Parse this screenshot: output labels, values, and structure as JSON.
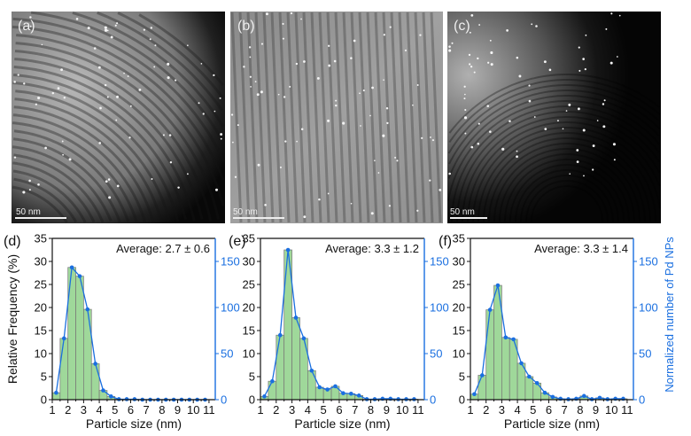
{
  "micrographs": [
    {
      "label": "(a)",
      "scale_bar": "50 nm"
    },
    {
      "label": "(b)",
      "scale_bar": "50 nm"
    },
    {
      "label": "(c)",
      "scale_bar": "50 nm"
    }
  ],
  "colors": {
    "bar": "#9fd89a",
    "bar_edge": "#777777",
    "line": "#1a6fe0"
  },
  "chart_data": [
    {
      "type": "bar",
      "panel": "(d)",
      "annotation": "Average: 2.7 ± 0.6",
      "xlabel": "Particle size (nm)",
      "ylabel": "Relative Frequency (%)",
      "y2label": "",
      "xlim": [
        1,
        11.4
      ],
      "ylim": [
        0,
        35
      ],
      "y2lim": [
        0,
        175
      ],
      "xticks": [
        "1",
        "2",
        "3",
        "4",
        "5",
        "6",
        "7",
        "8",
        "9",
        "10",
        "11"
      ],
      "yticks": [
        "0",
        "5",
        "10",
        "15",
        "20",
        "25",
        "30",
        "35"
      ],
      "y2ticks": [
        "0",
        "50",
        "100",
        "150"
      ],
      "bin_centers": [
        1.25,
        1.75,
        2.25,
        2.75,
        3.25,
        3.75,
        4.25,
        4.75,
        5.25,
        5.75,
        6.25,
        6.75,
        7.25,
        7.75,
        8.25,
        8.75,
        9.25,
        9.75,
        10.25,
        10.75
      ],
      "values": [
        1.5,
        13.3,
        28.7,
        26.8,
        19.6,
        7.8,
        2.0,
        0.7,
        0.1,
        0.1,
        0.1,
        0,
        0,
        0,
        0,
        0,
        0,
        0,
        0,
        0
      ],
      "show_ylabel": true,
      "show_y2label": false
    },
    {
      "type": "bar",
      "panel": "(e)",
      "annotation": "Average: 3.3 ± 1.2",
      "xlabel": "Particle size (nm)",
      "ylabel": "",
      "y2label": "",
      "xlim": [
        1,
        11.4
      ],
      "ylim": [
        0,
        35
      ],
      "y2lim": [
        0,
        175
      ],
      "xticks": [
        "1",
        "2",
        "3",
        "4",
        "5",
        "6",
        "7",
        "8",
        "9",
        "10",
        "11"
      ],
      "yticks": [
        "0",
        "5",
        "10",
        "15",
        "20",
        "25",
        "30",
        "35"
      ],
      "y2ticks": [
        "0",
        "50",
        "100",
        "150"
      ],
      "bin_centers": [
        1.25,
        1.75,
        2.25,
        2.75,
        3.25,
        3.75,
        4.25,
        4.75,
        5.25,
        5.75,
        6.25,
        6.75,
        7.25,
        7.75,
        8.25,
        8.75,
        9.25,
        9.75,
        10.25,
        10.75
      ],
      "values": [
        0.7,
        4.0,
        14.0,
        32.5,
        17.8,
        13.3,
        6.3,
        2.7,
        2.2,
        2.9,
        1.4,
        1.3,
        0.9,
        0.1,
        0.1,
        0.2,
        0.2,
        0.1,
        0.1,
        0.1
      ],
      "show_ylabel": false,
      "show_y2label": false
    },
    {
      "type": "bar",
      "panel": "(f)",
      "annotation": "Average: 3.3 ± 1.4",
      "xlabel": "Particle size (nm)",
      "ylabel": "",
      "y2label": "Normalized number of Pd NPs",
      "xlim": [
        1,
        11.4
      ],
      "ylim": [
        0,
        35
      ],
      "y2lim": [
        0,
        175
      ],
      "xticks": [
        "1",
        "2",
        "3",
        "4",
        "5",
        "6",
        "7",
        "8",
        "9",
        "10",
        "11"
      ],
      "yticks": [
        "0",
        "5",
        "10",
        "15",
        "20",
        "25",
        "30",
        "35"
      ],
      "y2ticks": [
        "0",
        "50",
        "100",
        "150"
      ],
      "bin_centers": [
        1.25,
        1.75,
        2.25,
        2.75,
        3.25,
        3.75,
        4.25,
        4.75,
        5.25,
        5.75,
        6.25,
        6.75,
        7.25,
        7.75,
        8.25,
        8.75,
        9.25,
        9.75,
        10.25,
        10.75
      ],
      "values": [
        1.2,
        5.3,
        19.5,
        24.8,
        13.5,
        13.1,
        7.9,
        5.0,
        3.6,
        1.5,
        0.6,
        0.2,
        0.1,
        0.2,
        0.8,
        0.1,
        0.4,
        0.1,
        0.2,
        0.2
      ],
      "show_ylabel": false,
      "show_y2label": true
    }
  ]
}
